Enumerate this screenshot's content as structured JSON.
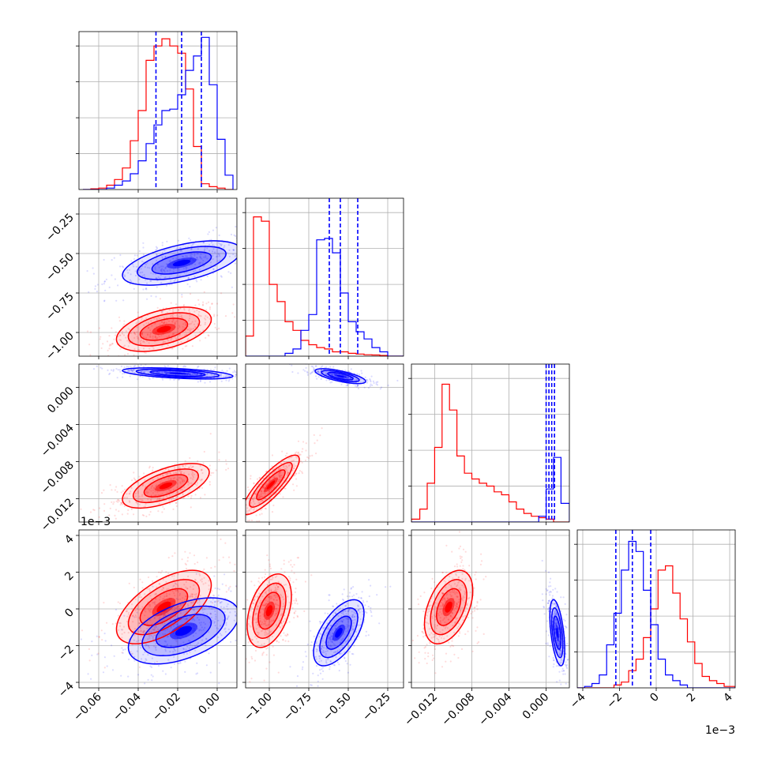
{
  "chart_data": {
    "type": "corner",
    "colors": {
      "red": "#ff0000",
      "blue": "#0000ff",
      "grid": "#b0b0b0"
    },
    "series": [
      {
        "color": "red"
      },
      {
        "color": "blue"
      }
    ],
    "axes": [
      {
        "range": [
          -0.07,
          0.01
        ],
        "ticks": [
          -0.06,
          -0.04,
          -0.02,
          0.0
        ],
        "tick_labels": [
          "−0.06",
          "−0.04",
          "−0.02",
          "0.00"
        ]
      },
      {
        "range": [
          -1.15,
          -0.15
        ],
        "ticks": [
          -1.0,
          -0.75,
          -0.5,
          -0.25
        ],
        "tick_labels": [
          "−1.00",
          "−0.75",
          "−0.50",
          "−0.25"
        ]
      },
      {
        "range": [
          -0.0145,
          0.0025
        ],
        "ticks": [
          -0.012,
          -0.008,
          -0.004,
          0.0
        ],
        "tick_labels": [
          "−0.012",
          "−0.008",
          "−0.004",
          "0.000"
        ]
      },
      {
        "range": [
          -4.3,
          4.3
        ],
        "ticks": [
          -4,
          -2,
          0,
          2,
          4
        ],
        "tick_labels": [
          "−4",
          "−2",
          "0",
          "2",
          "4"
        ],
        "scale_label": "1e−3"
      }
    ],
    "diag_ylim": [
      0,
      1.1
    ],
    "hist": [
      {
        "bins": [
          -0.068,
          -0.064,
          -0.06,
          -0.056,
          -0.052,
          -0.048,
          -0.044,
          -0.04,
          -0.036,
          -0.032,
          -0.028,
          -0.024,
          -0.02,
          -0.016,
          -0.012,
          -0.008,
          -0.004,
          0.0,
          0.004,
          0.008
        ],
        "red": [
          0.0,
          0.005,
          0.01,
          0.03,
          0.07,
          0.15,
          0.34,
          0.55,
          0.9,
          1.0,
          1.05,
          1.0,
          0.95,
          0.7,
          0.3,
          0.04,
          0.02,
          0.01,
          0.0
        ],
        "blue": [
          0.0,
          0.0,
          0.0,
          0.01,
          0.03,
          0.06,
          0.11,
          0.2,
          0.32,
          0.45,
          0.55,
          0.56,
          0.66,
          0.83,
          0.93,
          1.06,
          0.73,
          0.35,
          0.1
        ]
      },
      {
        "bins": [
          -1.15,
          -1.1,
          -1.05,
          -1.0,
          -0.95,
          -0.9,
          -0.85,
          -0.8,
          -0.75,
          -0.7,
          -0.65,
          -0.6,
          -0.55,
          -0.5,
          -0.45,
          -0.4,
          -0.35,
          -0.3,
          -0.25,
          -0.2,
          -0.15
        ],
        "red": [
          0.14,
          0.97,
          0.94,
          0.5,
          0.38,
          0.24,
          0.18,
          0.11,
          0.08,
          0.06,
          0.05,
          0.03,
          0.03,
          0.02,
          0.015,
          0.01,
          0.008,
          0.005,
          0.0,
          0.0
        ],
        "blue": [
          0.0,
          0.0,
          0.0,
          0.0,
          0.0,
          0.02,
          0.05,
          0.18,
          0.29,
          0.81,
          0.82,
          0.72,
          0.44,
          0.24,
          0.17,
          0.12,
          0.06,
          0.03,
          0.0,
          0.0
        ]
      },
      {
        "bins": [
          -0.0145,
          -0.0136,
          -0.0128,
          -0.012,
          -0.0112,
          -0.0104,
          -0.0096,
          -0.0088,
          -0.008,
          -0.0072,
          -0.0064,
          -0.0056,
          -0.0048,
          -0.004,
          -0.0032,
          -0.0024,
          -0.0016,
          -0.0008,
          0.0,
          0.0008,
          0.0016,
          0.0025
        ],
        "red": [
          0.02,
          0.09,
          0.27,
          0.52,
          0.96,
          0.78,
          0.46,
          0.34,
          0.3,
          0.27,
          0.25,
          0.21,
          0.19,
          0.14,
          0.09,
          0.06,
          0.04,
          0.03,
          0.02,
          0.0,
          0.0
        ],
        "blue": [
          0.0,
          0.0,
          0.0,
          0.0,
          0.0,
          0.0,
          0.0,
          0.0,
          0.0,
          0.0,
          0.0,
          0.0,
          0.0,
          0.0,
          0.0,
          0.0,
          0.0,
          0.04,
          0.23,
          0.45,
          0.13
        ]
      },
      {
        "bins": [
          -4.3,
          -3.9,
          -3.5,
          -3.1,
          -2.7,
          -2.3,
          -1.9,
          -1.5,
          -1.1,
          -0.7,
          -0.3,
          0.1,
          0.5,
          0.9,
          1.3,
          1.7,
          2.1,
          2.5,
          2.9,
          3.3,
          3.7,
          4.3
        ],
        "red": [
          0.0,
          0.0,
          0.0,
          0.0,
          0.0,
          0.02,
          0.04,
          0.12,
          0.2,
          0.35,
          0.55,
          0.82,
          0.85,
          0.66,
          0.48,
          0.32,
          0.17,
          0.08,
          0.05,
          0.03,
          0.01
        ],
        "blue": [
          0.0,
          0.01,
          0.03,
          0.09,
          0.3,
          0.52,
          0.82,
          1.02,
          0.95,
          0.68,
          0.44,
          0.2,
          0.09,
          0.05,
          0.02,
          0.0,
          0.0,
          0.0,
          0.0,
          0.0,
          0.0
        ]
      }
    ],
    "quantiles": [
      {
        "blue": [
          -0.031,
          -0.018,
          -0.008
        ]
      },
      {
        "blue": [
          -0.62,
          -0.55,
          -0.44
        ]
      },
      {
        "blue": [
          0.0,
          0.0003,
          0.0006,
          0.0009
        ]
      },
      {
        "blue": [
          -2.2,
          -1.3,
          -0.3
        ]
      }
    ],
    "pairs": [
      {
        "row": 1,
        "col": 0,
        "red": {
          "mean": [
            -0.027,
            -0.98
          ],
          "sd": [
            0.012,
            0.07
          ],
          "rho": 0.45
        },
        "blue": {
          "mean": [
            -0.018,
            -0.56
          ],
          "sd": [
            0.015,
            0.07
          ],
          "rho": 0.55
        }
      },
      {
        "row": 2,
        "col": 0,
        "red": {
          "mean": [
            -0.026,
            -0.0106
          ],
          "sd": [
            0.011,
            0.0012
          ],
          "rho": 0.6
        },
        "blue": {
          "mean": [
            -0.02,
            0.0015
          ],
          "sd": [
            0.014,
            0.0003
          ],
          "rho": -0.5
        }
      },
      {
        "row": 2,
        "col": 1,
        "red": {
          "mean": [
            -0.99,
            -0.0105
          ],
          "sd": [
            0.09,
            0.0016
          ],
          "rho": 0.85
        },
        "blue": {
          "mean": [
            -0.55,
            0.0012
          ],
          "sd": [
            0.08,
            0.0004
          ],
          "rho": -0.7
        }
      },
      {
        "row": 3,
        "col": 0,
        "red": {
          "mean": [
            -0.027,
            0.1
          ],
          "sd": [
            0.012,
            1.0
          ],
          "rho": 0.6
        },
        "blue": {
          "mean": [
            -0.017,
            -1.2
          ],
          "sd": [
            0.014,
            0.9
          ],
          "rho": 0.5
        }
      },
      {
        "row": 3,
        "col": 1,
        "red": {
          "mean": [
            -1.0,
            -0.1
          ],
          "sd": [
            0.07,
            1.0
          ],
          "rho": 0.4
        },
        "blue": {
          "mean": [
            -0.56,
            -1.3
          ],
          "sd": [
            0.08,
            0.9
          ],
          "rho": 0.6
        }
      },
      {
        "row": 3,
        "col": 2,
        "red": {
          "mean": [
            -0.0105,
            0.1
          ],
          "sd": [
            0.0013,
            1.0
          ],
          "rho": 0.45
        },
        "blue": {
          "mean": [
            0.0012,
            -1.3
          ],
          "sd": [
            0.0004,
            0.9
          ],
          "rho": -0.5
        }
      }
    ],
    "grid": true
  }
}
